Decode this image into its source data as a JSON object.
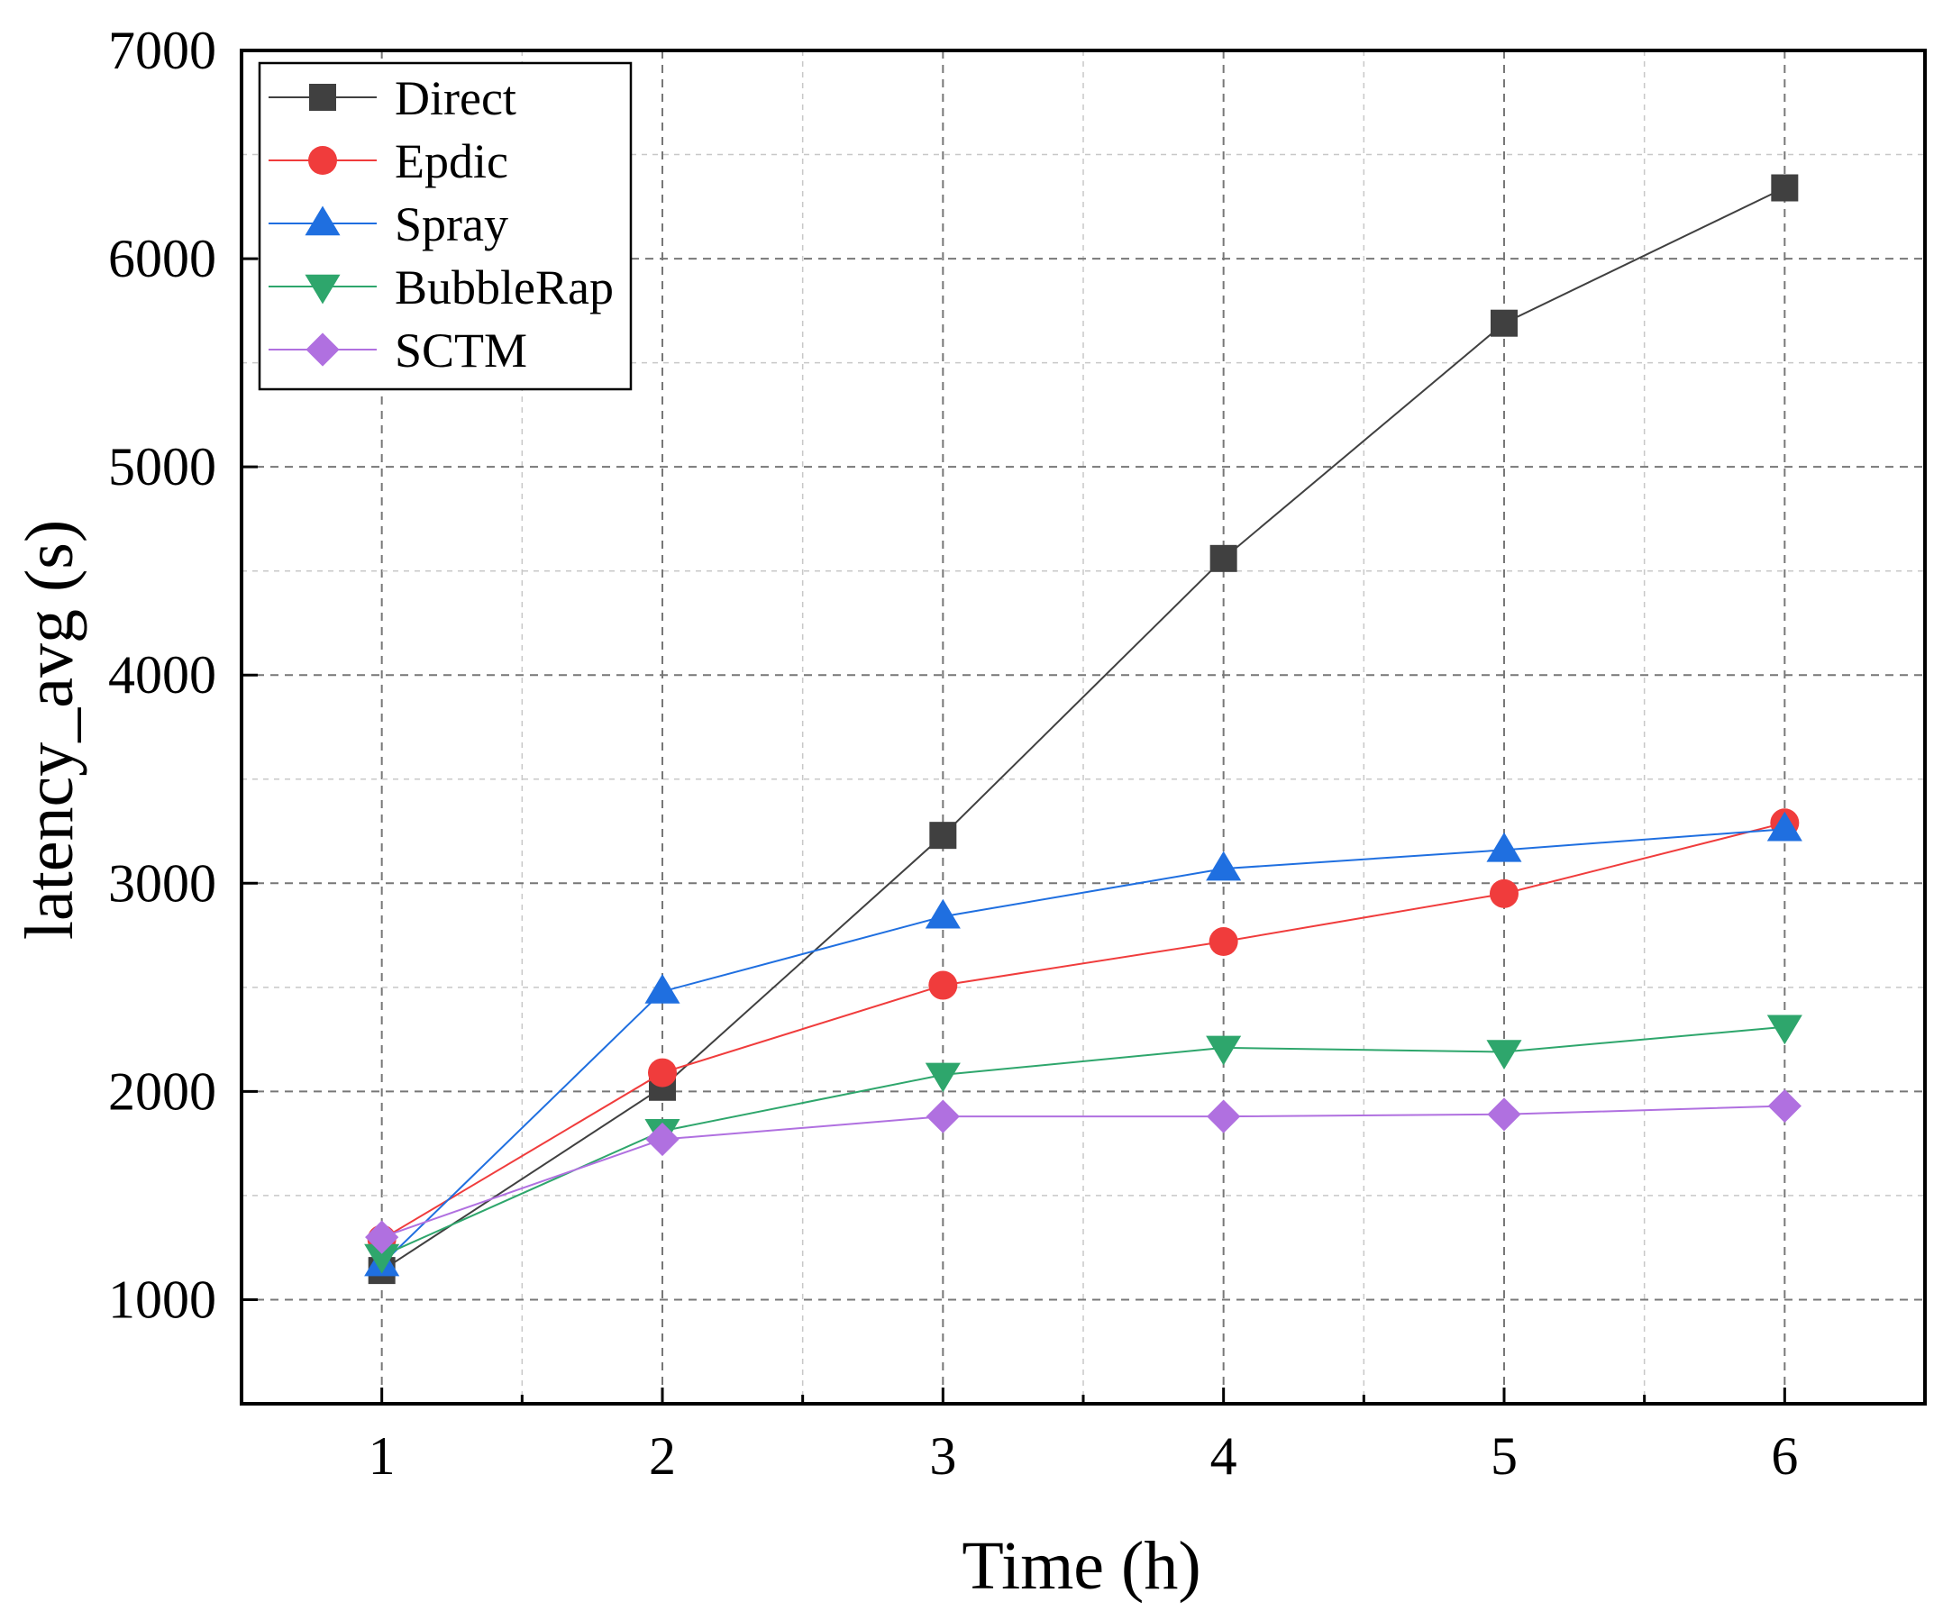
{
  "chart_data": {
    "type": "line",
    "title": "",
    "xlabel": "Time (h)",
    "ylabel": "latency_avg (s)",
    "x": [
      1,
      2,
      3,
      4,
      5,
      6
    ],
    "xlim": [
      0.5,
      6.5
    ],
    "ylim": [
      500,
      7000
    ],
    "xticks": [
      "1",
      "2",
      "3",
      "4",
      "5",
      "6"
    ],
    "yticks": [
      "1000",
      "2000",
      "3000",
      "4000",
      "5000",
      "6000",
      "7000"
    ],
    "grid": true,
    "legend_position": "top-left",
    "series": [
      {
        "name": "Direct",
        "color": "#404040",
        "marker": "square",
        "values": [
          1140,
          2020,
          3230,
          4560,
          5690,
          6340
        ]
      },
      {
        "name": "Epdic",
        "color": "#f03c3c",
        "marker": "circle",
        "values": [
          1290,
          2090,
          2510,
          2720,
          2950,
          3290
        ]
      },
      {
        "name": "Spray",
        "color": "#1f6fe0",
        "marker": "triangle-up",
        "values": [
          1170,
          2480,
          2840,
          3070,
          3160,
          3260
        ]
      },
      {
        "name": "BubbleRap",
        "color": "#2ea66c",
        "marker": "triangle-down",
        "values": [
          1210,
          1810,
          2080,
          2210,
          2190,
          2310
        ]
      },
      {
        "name": "SCTM",
        "color": "#b070e0",
        "marker": "diamond",
        "values": [
          1300,
          1770,
          1880,
          1880,
          1890,
          1930
        ]
      }
    ]
  }
}
